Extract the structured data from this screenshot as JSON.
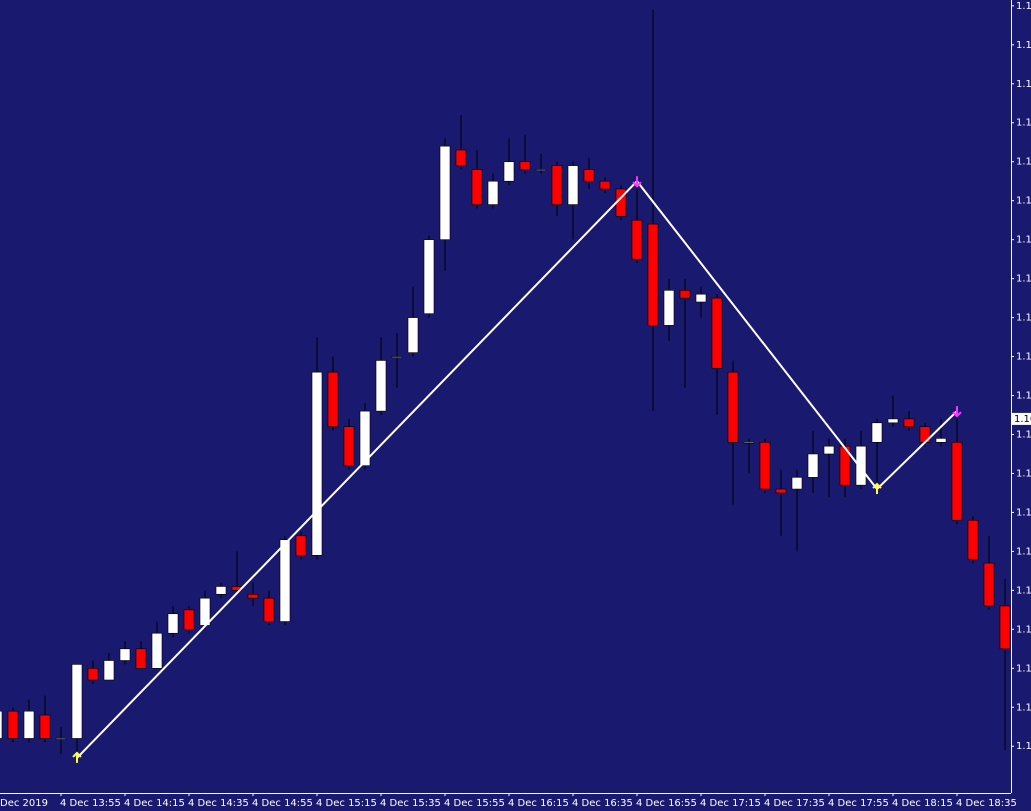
{
  "chart_data": {
    "type": "candlestick",
    "x": [
      "Dec 2019",
      null,
      null,
      null,
      "4 Dec 13:55",
      null,
      null,
      null,
      "4 Dec 14:15",
      null,
      null,
      null,
      "4 Dec 14:35",
      null,
      null,
      null,
      "4 Dec 14:55",
      null,
      null,
      null,
      "4 Dec 15:15",
      null,
      null,
      null,
      "4 Dec 15:35",
      null,
      null,
      null,
      "4 Dec 15:55",
      null,
      null,
      null,
      "4 Dec 16:15",
      null,
      null,
      null,
      "4 Dec 16:35",
      null,
      null,
      null,
      "4 Dec 16:55",
      null,
      null,
      null,
      "4 Dec 17:15",
      null,
      null,
      null,
      "4 Dec 17:35",
      null,
      null,
      null,
      "4 Dec 17:55",
      null,
      null,
      null,
      "4 Dec 18:15",
      null,
      null,
      null,
      "4 Dec 18:35",
      null,
      null,
      null
    ],
    "open": [
      1.10792,
      1.10799,
      1.10792,
      1.10798,
      1.10792,
      1.10792,
      1.1081,
      1.10807,
      1.10812,
      1.10815,
      1.1081,
      1.10819,
      1.10825,
      1.10821,
      1.10829,
      1.10831,
      1.10829,
      1.10828,
      1.10822,
      1.10844,
      1.10839,
      1.10886,
      1.10872,
      1.10862,
      1.10876,
      1.1089,
      1.10891,
      1.10901,
      1.1092,
      1.10943,
      1.10938,
      1.10929,
      1.10935,
      1.1094,
      1.10938,
      1.10939,
      1.10929,
      1.10938,
      1.10935,
      1.10933,
      1.10925,
      1.10924,
      1.10898,
      1.10907,
      1.10904,
      1.10905,
      1.10886,
      1.10868,
      1.10868,
      1.10856,
      1.10856,
      1.10859,
      1.10865,
      1.10867,
      1.10857,
      1.10868,
      1.10873,
      1.10874,
      1.10872,
      1.10868,
      1.10868,
      1.10848,
      1.10837,
      1.10826
    ],
    "high": [
      1.10801,
      1.108,
      1.10802,
      1.10803,
      1.10795,
      1.10811,
      1.10812,
      1.10814,
      1.10817,
      1.10817,
      1.10822,
      1.10826,
      1.10826,
      1.1083,
      1.10832,
      1.1084,
      1.10832,
      1.1083,
      1.10844,
      1.10845,
      1.10895,
      1.1089,
      1.10874,
      1.10878,
      1.10895,
      1.10896,
      1.10908,
      1.10921,
      1.10946,
      1.10952,
      1.10943,
      1.10937,
      1.10946,
      1.10947,
      1.10942,
      1.1094,
      1.1094,
      1.10941,
      1.10936,
      1.10934,
      1.10935,
      1.10979,
      1.1091,
      1.1091,
      1.10908,
      1.10906,
      1.10889,
      1.10869,
      1.10869,
      1.10861,
      1.10861,
      1.10871,
      1.10869,
      1.10869,
      1.10871,
      1.10874,
      1.1088,
      1.10876,
      1.10873,
      1.10874,
      1.10876,
      1.10849,
      1.10844,
      1.10833
    ],
    "low": [
      1.10791,
      1.10791,
      1.10791,
      1.10791,
      1.10788,
      1.10787,
      1.10806,
      1.10807,
      1.10811,
      1.1081,
      1.1081,
      1.10818,
      1.10819,
      1.1082,
      1.10828,
      1.10829,
      1.10826,
      1.10821,
      1.10821,
      1.10838,
      1.10838,
      1.10871,
      1.10861,
      1.10861,
      1.10875,
      1.10882,
      1.1089,
      1.109,
      1.10912,
      1.10938,
      1.10928,
      1.10928,
      1.10934,
      1.10937,
      1.10937,
      1.10926,
      1.1092,
      1.10933,
      1.10932,
      1.10925,
      1.10914,
      1.10876,
      1.10894,
      1.10882,
      1.109,
      1.10875,
      1.10852,
      1.1086,
      1.10855,
      1.10844,
      1.1084,
      1.10855,
      1.10854,
      1.10854,
      1.10856,
      1.10856,
      1.10872,
      1.10871,
      1.10867,
      1.10867,
      1.10847,
      1.10837,
      1.10825,
      1.10789
    ],
    "close": [
      1.10799,
      1.10792,
      1.10799,
      1.10792,
      1.10792,
      1.10811,
      1.10807,
      1.10812,
      1.10815,
      1.1081,
      1.10819,
      1.10824,
      1.1082,
      1.10828,
      1.10831,
      1.1083,
      1.10828,
      1.10822,
      1.10843,
      1.10839,
      1.10886,
      1.10872,
      1.10862,
      1.10876,
      1.10889,
      1.1089,
      1.109,
      1.1092,
      1.10944,
      1.10939,
      1.10929,
      1.10935,
      1.1094,
      1.10938,
      1.10938,
      1.10929,
      1.10939,
      1.10935,
      1.10933,
      1.10926,
      1.10915,
      1.10898,
      1.10907,
      1.10905,
      1.10906,
      1.10887,
      1.10868,
      1.10868,
      1.10856,
      1.10855,
      1.10859,
      1.10865,
      1.10867,
      1.10857,
      1.10867,
      1.10873,
      1.10874,
      1.10872,
      1.10868,
      1.10869,
      1.10848,
      1.10838,
      1.10826,
      1.10815
    ],
    "up_color": "#ffffff",
    "down_color": "#ff0000",
    "wick_color": "#000000",
    "background": "#191970",
    "ylim": [
      1.10778,
      1.109815
    ],
    "yticks": [
      {
        "value": 1.1098,
        "label": "1.1"
      },
      {
        "value": 1.1097,
        "label": "1.1"
      },
      {
        "value": 1.1096,
        "label": "1.1"
      },
      {
        "value": 1.1095,
        "label": "1.1"
      },
      {
        "value": 1.1094,
        "label": "1.1"
      },
      {
        "value": 1.1093,
        "label": "1.1"
      },
      {
        "value": 1.1092,
        "label": "1.1"
      },
      {
        "value": 1.1091,
        "label": "1.1"
      },
      {
        "value": 1.109,
        "label": "1.1"
      },
      {
        "value": 1.1089,
        "label": "1.1"
      },
      {
        "value": 1.1088,
        "label": "1.1"
      },
      {
        "value": 1.1087,
        "label": "1.1"
      },
      {
        "value": 1.1086,
        "label": "1.1"
      },
      {
        "value": 1.1085,
        "label": "1.1"
      },
      {
        "value": 1.1084,
        "label": "1.1"
      },
      {
        "value": 1.1083,
        "label": "1.1"
      },
      {
        "value": 1.1082,
        "label": "1.1"
      },
      {
        "value": 1.1081,
        "label": "1.1"
      },
      {
        "value": 1.108,
        "label": "1.1"
      },
      {
        "value": 1.1079,
        "label": "1.1"
      }
    ],
    "price_label": {
      "value": 1.10874,
      "label": "1.10"
    },
    "zigzag": {
      "color": "#ffffff",
      "connect_gaps": true,
      "low_marker_color": "#ffff44",
      "high_marker_color": "#ff33ff",
      "values": [
        null,
        null,
        null,
        null,
        null,
        1.10787,
        null,
        null,
        null,
        null,
        null,
        null,
        null,
        null,
        null,
        null,
        null,
        null,
        null,
        null,
        null,
        null,
        null,
        null,
        null,
        null,
        null,
        null,
        null,
        null,
        null,
        null,
        null,
        null,
        null,
        null,
        null,
        null,
        null,
        null,
        1.10935,
        null,
        null,
        null,
        null,
        null,
        null,
        null,
        null,
        null,
        null,
        null,
        null,
        null,
        null,
        1.10856,
        null,
        null,
        null,
        null,
        1.10876,
        null,
        null,
        null
      ]
    }
  }
}
